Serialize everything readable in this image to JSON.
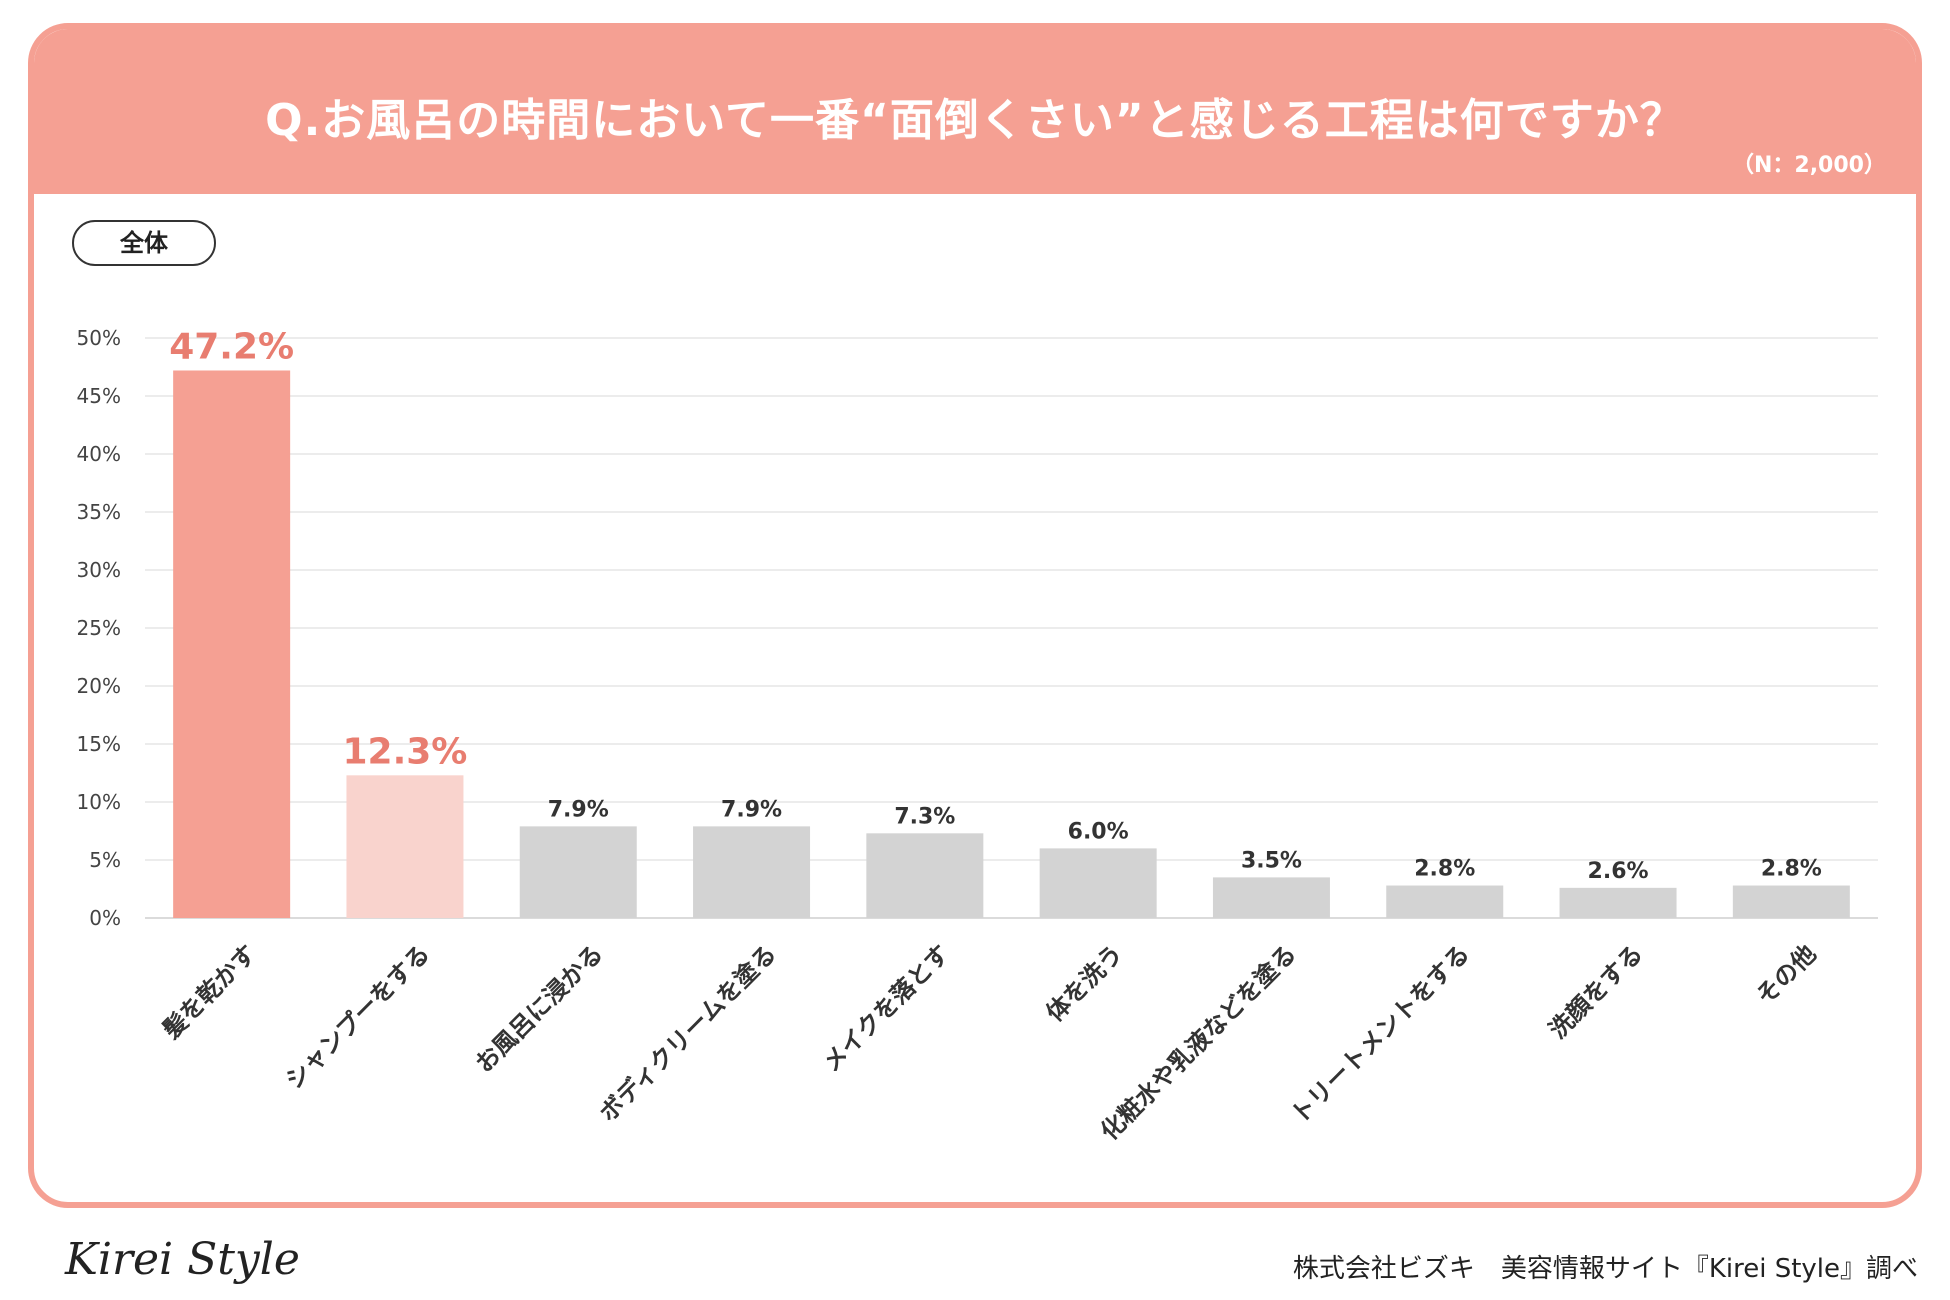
{
  "header": {
    "title": "Q.お風呂の時間において一番“面倒くさい”と感じる工程は何ですか？",
    "sample": "（N：2,000）"
  },
  "segment": {
    "label": "全体"
  },
  "colors": {
    "accent": "#f5a093",
    "highlight_secondary": "#f9d3cd",
    "bar_default": "#d3d3d3",
    "label_accent": "#e87d70",
    "label_default": "#333333"
  },
  "chart_data": {
    "type": "bar",
    "title": "Q.お風呂の時間において一番“面倒くさい”と感じる工程は何ですか？",
    "xlabel": "",
    "ylabel": "",
    "ylim": [
      0,
      50
    ],
    "y_ticks": [
      "0%",
      "5%",
      "10%",
      "15%",
      "20%",
      "25%",
      "30%",
      "35%",
      "40%",
      "45%",
      "50%"
    ],
    "categories": [
      "髪を乾かす",
      "シャンプーをする",
      "お風呂に浸かる",
      "ボディクリームを塗る",
      "メイクを落とす",
      "体を洗う",
      "化粧水や乳液などを塗る",
      "トリートメントをする",
      "洗顔をする",
      "その他"
    ],
    "values": [
      47.2,
      12.3,
      7.9,
      7.9,
      7.3,
      6.0,
      3.5,
      2.8,
      2.6,
      2.8
    ],
    "value_labels": [
      "47.2%",
      "12.3%",
      "7.9%",
      "7.9%",
      "7.3%",
      "6.0%",
      "3.5%",
      "2.8%",
      "2.6%",
      "2.8%"
    ],
    "grid": true
  },
  "footer": {
    "logo": "Kirei Style",
    "credit": "株式会社ビズキ　美容情報サイト『Kirei Style』調べ"
  }
}
